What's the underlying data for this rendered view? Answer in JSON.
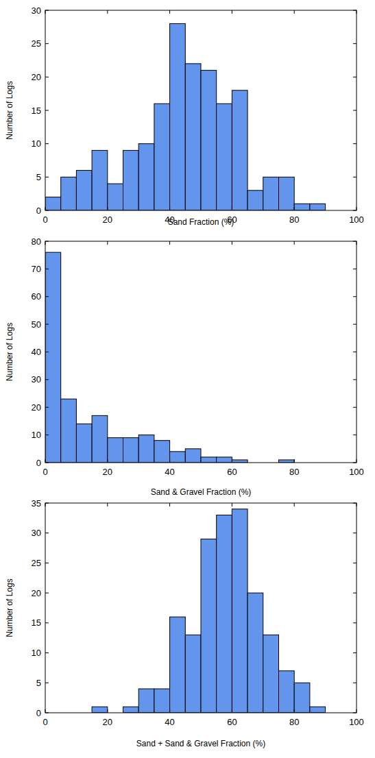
{
  "chart_data": [
    {
      "type": "histogram",
      "x_label": "Sand Fraction (%)",
      "y_label": "Number of Logs",
      "bins": [
        0,
        5,
        10,
        15,
        20,
        25,
        30,
        35,
        40,
        45,
        50,
        55,
        60,
        65,
        70,
        75,
        80,
        85,
        90
      ],
      "values": [
        2,
        5,
        6,
        9,
        4,
        9,
        10,
        16,
        28,
        22,
        21,
        16,
        18,
        3,
        5,
        5,
        1,
        1
      ],
      "color": "#6495ed",
      "xlim": [
        0,
        100
      ],
      "xticks": [
        0,
        20,
        40,
        60,
        80,
        100
      ],
      "ylim": [
        0,
        30
      ],
      "yticks": [
        0,
        5,
        10,
        15,
        20,
        25,
        30
      ]
    },
    {
      "type": "histogram",
      "x_label": "Sand & Gravel Fraction (%)",
      "y_label": "Number of Logs",
      "bins": [
        0,
        5,
        10,
        15,
        20,
        25,
        30,
        35,
        40,
        45,
        50,
        55,
        60,
        65,
        70,
        75,
        80
      ],
      "values": [
        76,
        23,
        14,
        17,
        9,
        9,
        10,
        8,
        4,
        5,
        2,
        2,
        1,
        0,
        0,
        1
      ],
      "color": "#6495ed",
      "xlim": [
        0,
        100
      ],
      "xticks": [
        0,
        20,
        40,
        60,
        80,
        100
      ],
      "ylim": [
        0,
        80
      ],
      "yticks": [
        0,
        10,
        20,
        30,
        40,
        50,
        60,
        70,
        80
      ]
    },
    {
      "type": "histogram",
      "x_label": "Sand + Sand & Gravel Fraction (%)",
      "y_label": "Number of Logs",
      "bins": [
        15,
        20,
        25,
        30,
        35,
        40,
        45,
        50,
        55,
        60,
        65,
        70,
        75,
        80,
        85,
        90
      ],
      "values": [
        1,
        0,
        1,
        4,
        4,
        16,
        13,
        29,
        33,
        34,
        20,
        13,
        7,
        5,
        1
      ],
      "color": "#6495ed",
      "xlim": [
        0,
        100
      ],
      "xticks": [
        0,
        20,
        40,
        60,
        80,
        100
      ],
      "ylim": [
        0,
        35
      ],
      "yticks": [
        0,
        5,
        10,
        15,
        20,
        25,
        30,
        35
      ]
    }
  ]
}
